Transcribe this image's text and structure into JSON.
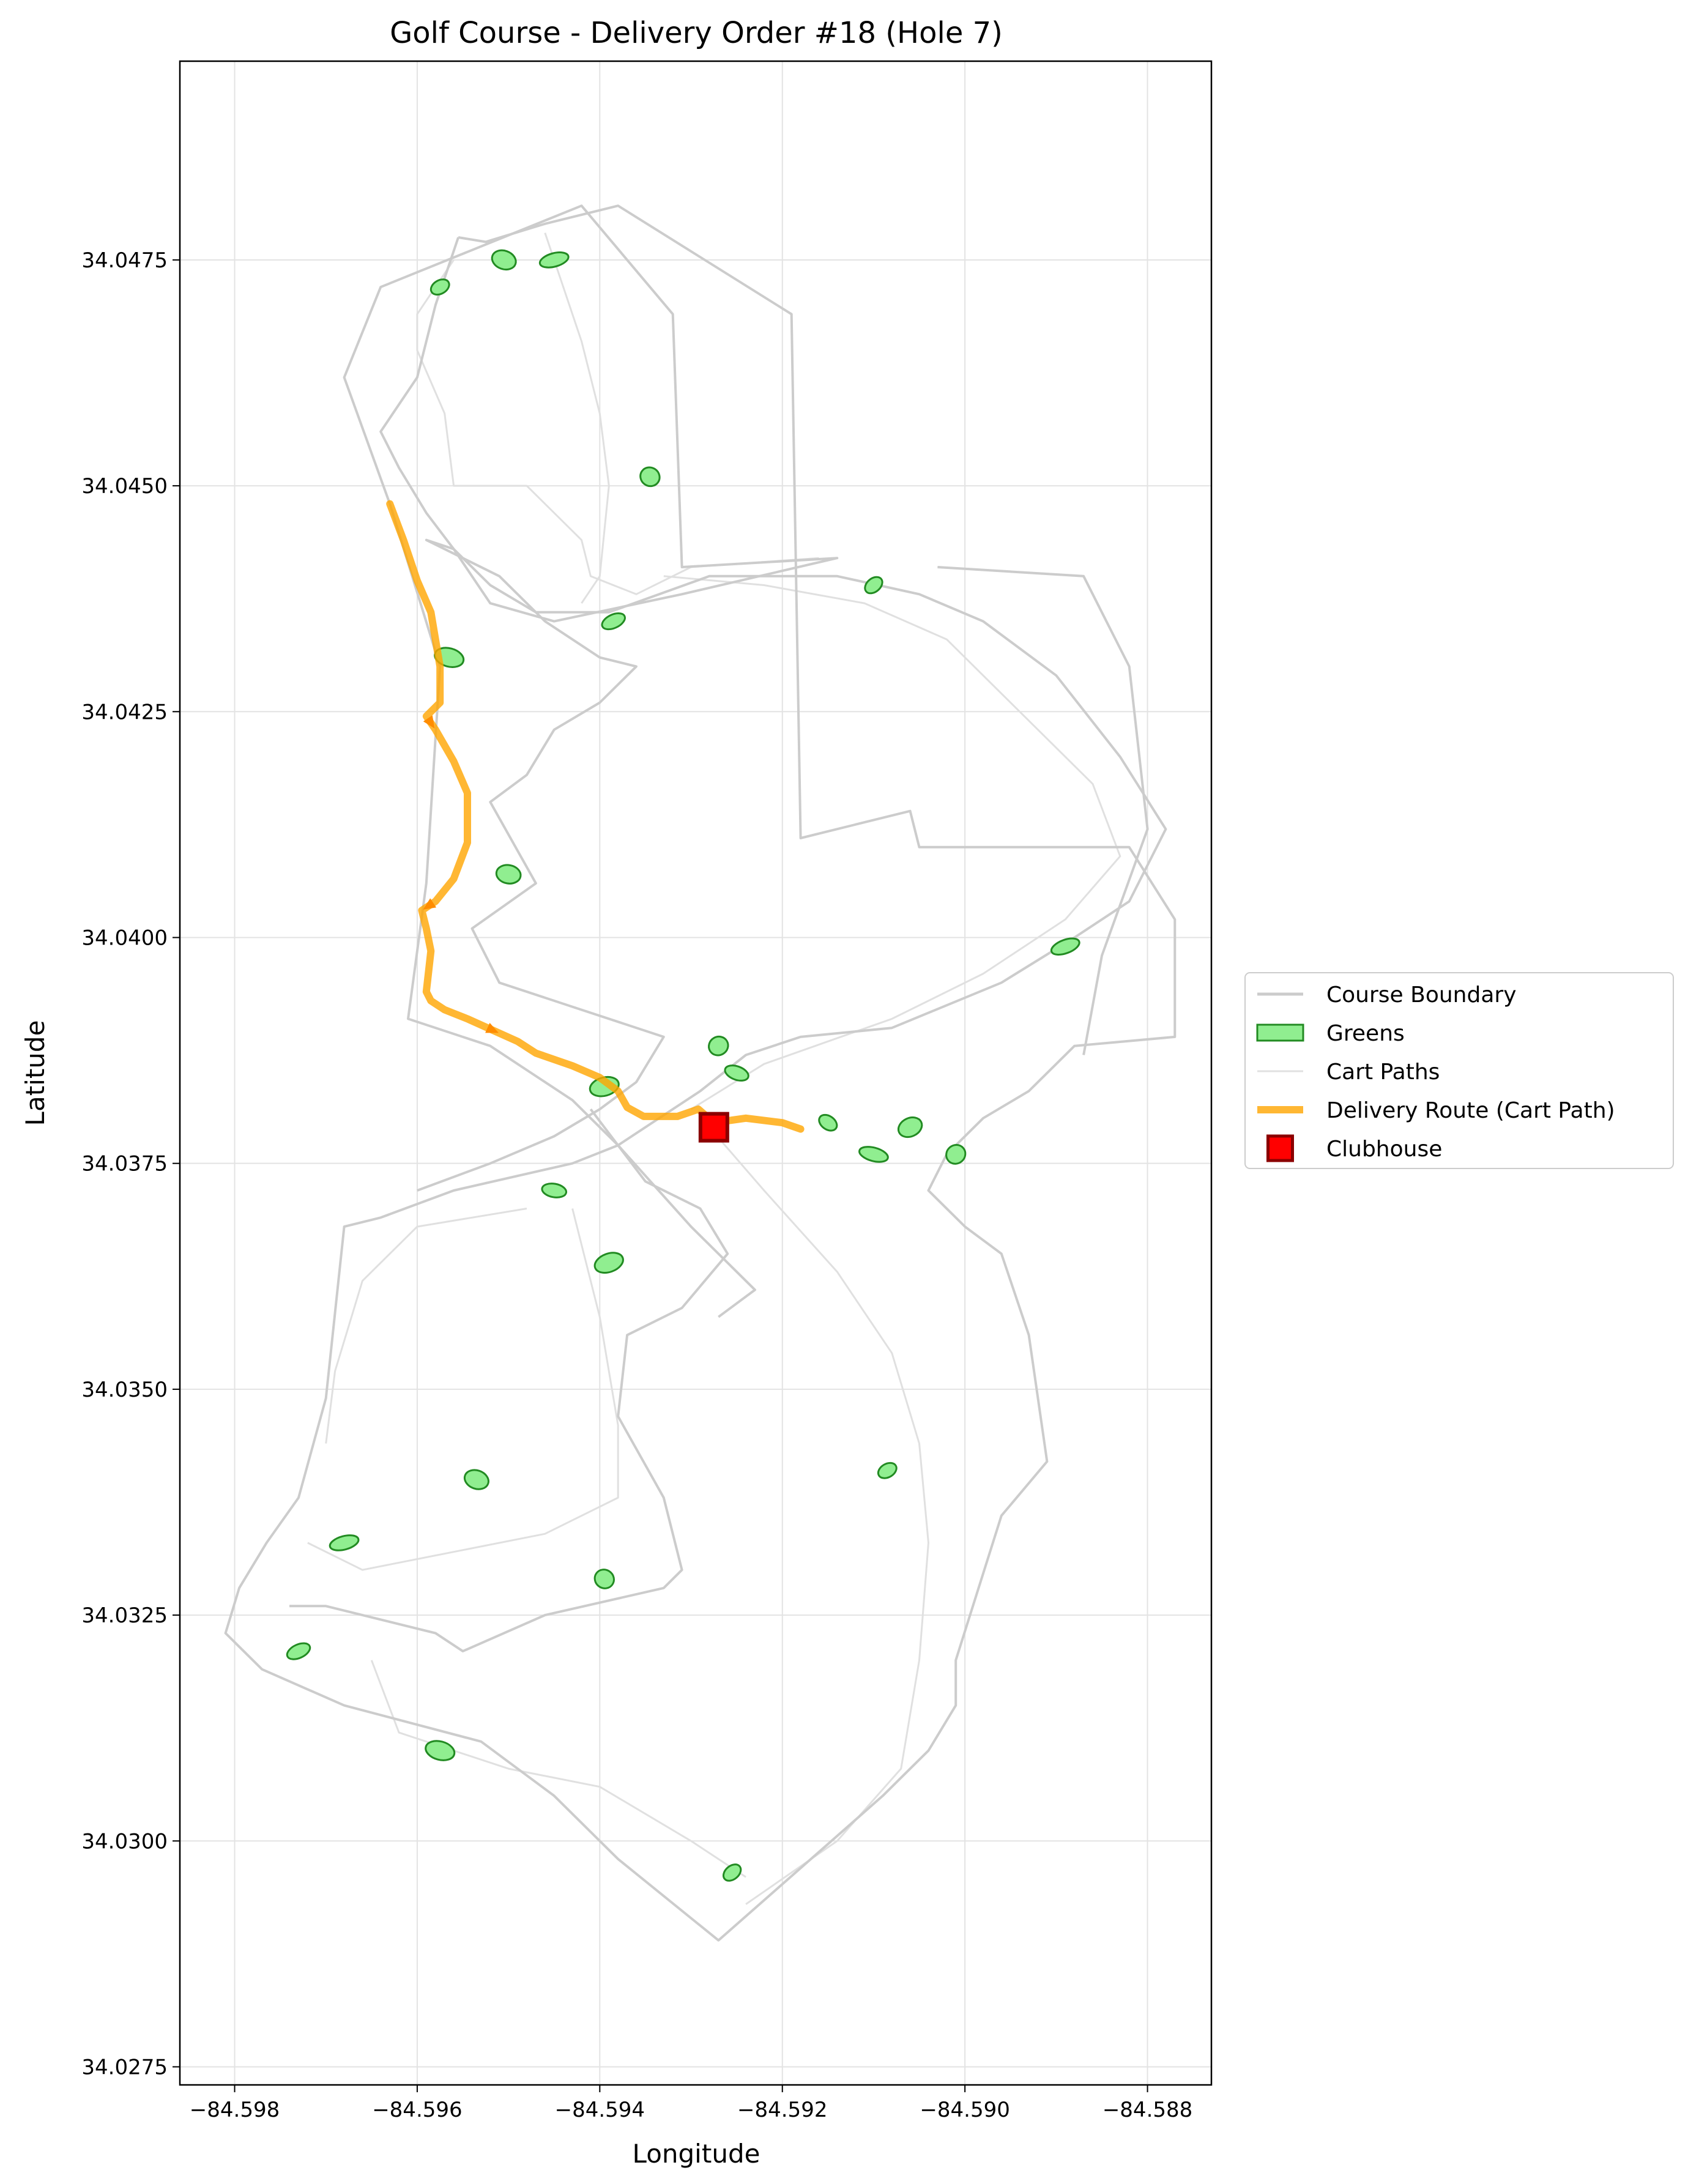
{
  "chart_data": {
    "type": "scatter",
    "title": "Golf Course - Delivery Order #18 (Hole 7)",
    "xlabel": "Longitude",
    "ylabel": "Latitude",
    "xlim": [
      -84.5986,
      -84.5873
    ],
    "ylim": [
      34.0273,
      34.0497
    ],
    "x_ticks": [
      -84.598,
      -84.596,
      -84.594,
      -84.592,
      -84.59,
      -84.588
    ],
    "x_tick_labels": [
      "−84.598",
      "−84.596",
      "−84.594",
      "−84.592",
      "−84.590",
      "−84.588"
    ],
    "y_ticks": [
      34.0275,
      34.03,
      34.0325,
      34.035,
      34.0375,
      34.04,
      34.0425,
      34.045,
      34.0475
    ],
    "y_tick_labels": [
      "34.0275",
      "34.0300",
      "34.0325",
      "34.0350",
      "34.0375",
      "34.0400",
      "34.0425",
      "34.0450",
      "34.0475"
    ],
    "grid": true,
    "legend_position": "outside-right",
    "legend": [
      {
        "label": "Course Boundary",
        "kind": "line",
        "color": "#cccccc"
      },
      {
        "label": "Greens",
        "kind": "patch",
        "color": "#90ee90",
        "edge": "#228b22"
      },
      {
        "label": "Cart Paths",
        "kind": "thinline",
        "color": "#e0e0e0"
      },
      {
        "label": "Delivery Route (Cart Path)",
        "kind": "thickline",
        "color": "#ffa500"
      },
      {
        "label": "Clubhouse",
        "kind": "square",
        "color": "#ff0000",
        "edge": "#8b0000"
      }
    ],
    "colors": {
      "boundary": "#cccccc",
      "green_fill": "#90ee90",
      "green_edge": "#228b22",
      "cart_path": "#e0e0e0",
      "route": "#ffa500",
      "route_arrow": "#ff8c00",
      "clubhouse_fill": "#ff0000",
      "clubhouse_edge": "#8b0000"
    },
    "clubhouse": {
      "x": -84.59275,
      "y": 34.0379
    },
    "delivery_route": [
      [
        -84.5963,
        34.0448
      ],
      [
        -84.59615,
        34.0444
      ],
      [
        -84.596,
        34.04395
      ],
      [
        -84.59585,
        34.0436
      ],
      [
        -84.59575,
        34.043
      ],
      [
        -84.59575,
        34.0426
      ],
      [
        -84.5959,
        34.04245
      ],
      [
        -84.5958,
        34.0423
      ],
      [
        -84.5956,
        34.04195
      ],
      [
        -84.59545,
        34.0416
      ],
      [
        -84.59545,
        34.04105
      ],
      [
        -84.5956,
        34.04065
      ],
      [
        -84.5958,
        34.0404
      ],
      [
        -84.59595,
        34.0403
      ],
      [
        -84.5959,
        34.0401
      ],
      [
        -84.59585,
        34.03985
      ],
      [
        -84.5959,
        34.0394
      ],
      [
        -84.59585,
        34.0393
      ],
      [
        -84.5957,
        34.0392
      ],
      [
        -84.59545,
        34.0391
      ],
      [
        -84.5949,
        34.03885
      ],
      [
        -84.5947,
        34.03872
      ],
      [
        -84.5943,
        34.03858
      ],
      [
        -84.594,
        34.03845
      ],
      [
        -84.5938,
        34.0383
      ],
      [
        -84.5937,
        34.03812
      ],
      [
        -84.59352,
        34.03802
      ],
      [
        -84.59315,
        34.03802
      ],
      [
        -84.59292,
        34.0381
      ],
      [
        -84.59275,
        34.03795
      ],
      [
        -84.5924,
        34.038
      ],
      [
        -84.592,
        34.03795
      ],
      [
        -84.5918,
        34.03788
      ]
    ],
    "course_boundary": [
      [
        [
          -84.59555,
          34.04775
        ],
        [
          -84.59525,
          34.0477
        ],
        [
          -84.5946,
          34.0479
        ],
        [
          -84.5938,
          34.0481
        ],
        [
          -84.5919,
          34.0469
        ],
        [
          -84.5918,
          34.0411
        ],
        [
          -84.5906,
          34.0414
        ],
        [
          -84.5905,
          34.041
        ],
        [
          -84.5882,
          34.041
        ],
        [
          -84.5877,
          34.0402
        ],
        [
          -84.5877,
          34.0389
        ],
        [
          -84.5888,
          34.0388
        ],
        [
          -84.5893,
          34.0383
        ],
        [
          -84.5898,
          34.038
        ],
        [
          -84.5902,
          34.0376
        ],
        [
          -84.5904,
          34.0372
        ],
        [
          -84.59,
          34.0368
        ],
        [
          -84.5896,
          34.0365
        ],
        [
          -84.5893,
          34.0356
        ],
        [
          -84.5891,
          34.0342
        ],
        [
          -84.5896,
          34.0336
        ],
        [
          -84.5901,
          34.032
        ],
        [
          -84.5901,
          34.0315
        ],
        [
          -84.5904,
          34.031
        ],
        [
          -84.5909,
          34.0305
        ],
        [
          -84.5918,
          34.0297
        ],
        [
          -84.5927,
          34.0289
        ],
        [
          -84.5938,
          34.0298
        ],
        [
          -84.5945,
          34.0305
        ],
        [
          -84.5953,
          34.0311
        ],
        [
          -84.5968,
          34.0315
        ],
        [
          -84.5977,
          34.0319
        ],
        [
          -84.5981,
          34.0323
        ],
        [
          -84.59795,
          34.0328
        ],
        [
          -84.59765,
          34.0333
        ],
        [
          -84.5973,
          34.0338
        ],
        [
          -84.597,
          34.0349
        ],
        [
          -84.5968,
          34.0368
        ],
        [
          -84.5964,
          34.0369
        ],
        [
          -84.5956,
          34.0372
        ],
        [
          -84.5943,
          34.0375
        ],
        [
          -84.5938,
          34.0377
        ],
        [
          -84.5929,
          34.0383
        ],
        [
          -84.5924,
          34.0387
        ],
        [
          -84.5918,
          34.0389
        ],
        [
          -84.5908,
          34.039
        ],
        [
          -84.5896,
          34.0395
        ],
        [
          -84.5888,
          34.04
        ],
        [
          -84.5882,
          34.0404
        ],
        [
          -84.5878,
          34.0412
        ],
        [
          -84.5883,
          34.042
        ],
        [
          -84.589,
          34.0429
        ],
        [
          -84.5898,
          34.0435
        ],
        [
          -84.5905,
          34.0438
        ],
        [
          -84.5914,
          34.044
        ],
        [
          -84.5928,
          34.044
        ],
        [
          -84.5939,
          34.0436
        ],
        [
          -84.5947,
          34.0436
        ],
        [
          -84.5952,
          34.0439
        ],
        [
          -84.5956,
          34.0443
        ],
        [
          -84.5959,
          34.0447
        ],
        [
          -84.5962,
          34.0452
        ],
        [
          -84.5964,
          34.0456
        ],
        [
          -84.596,
          34.0462
        ],
        [
          -84.5958,
          34.047
        ],
        [
          -84.59555,
          34.04775
        ]
      ],
      [
        [
          -84.5963,
          34.0448
        ],
        [
          -84.5968,
          34.0462
        ],
        [
          -84.5964,
          34.0472
        ],
        [
          -84.5942,
          34.0481
        ],
        [
          -84.5932,
          34.0469
        ],
        [
          -84.5931,
          34.0441
        ],
        [
          -84.5914,
          34.0442
        ],
        [
          -84.5931,
          34.0438
        ],
        [
          -84.5945,
          34.0435
        ],
        [
          -84.5952,
          34.0437
        ],
        [
          -84.5956,
          34.0443
        ],
        [
          -84.5959,
          34.0444
        ],
        [
          -84.5951,
          34.044
        ],
        [
          -84.5946,
          34.0435
        ],
        [
          -84.594,
          34.0431
        ],
        [
          -84.5936,
          34.043
        ],
        [
          -84.594,
          34.0426
        ],
        [
          -84.5945,
          34.0423
        ],
        [
          -84.5948,
          34.0418
        ],
        [
          -84.5952,
          34.0415
        ],
        [
          -84.5947,
          34.0406
        ],
        [
          -84.5954,
          34.0401
        ],
        [
          -84.5951,
          34.0395
        ],
        [
          -84.5942,
          34.0392
        ],
        [
          -84.5933,
          34.0389
        ],
        [
          -84.5936,
          34.0384
        ],
        [
          -84.594,
          34.0381
        ],
        [
          -84.5945,
          34.0378
        ],
        [
          -84.5952,
          34.0375
        ],
        [
          -84.596,
          34.0372
        ]
      ],
      [
        [
          -84.5963,
          34.0448
        ],
        [
          -84.59575,
          34.043
        ],
        [
          -84.5959,
          34.0406
        ],
        [
          -84.5961,
          34.0391
        ],
        [
          -84.5952,
          34.0388
        ],
        [
          -84.5943,
          34.0382
        ],
        [
          -84.5938,
          34.0377
        ],
        [
          -84.593,
          34.0368
        ],
        [
          -84.5923,
          34.0361
        ],
        [
          -84.5927,
          34.0358
        ]
      ],
      [
        [
          -84.5903,
          34.0441
        ],
        [
          -84.5887,
          34.044
        ],
        [
          -84.5882,
          34.043
        ],
        [
          -84.588,
          34.0412
        ],
        [
          -84.5885,
          34.0398
        ],
        [
          -84.5887,
          34.0387
        ]
      ],
      [
        [
          -84.5941,
          34.0381
        ],
        [
          -84.5935,
          34.0373
        ],
        [
          -84.5929,
          34.037
        ],
        [
          -84.5926,
          34.0365
        ],
        [
          -84.5931,
          34.0359
        ],
        [
          -84.5937,
          34.0356
        ],
        [
          -84.5938,
          34.0347
        ],
        [
          -84.5933,
          34.0338
        ],
        [
          -84.5931,
          34.033
        ],
        [
          -84.5933,
          34.0328
        ],
        [
          -84.5946,
          34.0325
        ],
        [
          -84.5955,
          34.0321
        ],
        [
          -84.5958,
          34.0323
        ],
        [
          -84.597,
          34.0326
        ],
        [
          -84.5974,
          34.0326
        ]
      ]
    ],
    "cart_paths": [
      [
        [
          -84.5956,
          34.0475
        ],
        [
          -84.596,
          34.0469
        ],
        [
          -84.596,
          34.0465
        ],
        [
          -84.5957,
          34.0458
        ],
        [
          -84.5956,
          34.045
        ],
        [
          -84.5948,
          34.045
        ],
        [
          -84.5942,
          34.0444
        ],
        [
          -84.5941,
          34.044
        ],
        [
          -84.5936,
          34.0438
        ],
        [
          -84.593,
          34.0441
        ],
        [
          -84.5916,
          34.0442
        ]
      ],
      [
        [
          -84.5946,
          34.0478
        ],
        [
          -84.5944,
          34.0472
        ],
        [
          -84.5942,
          34.0466
        ],
        [
          -84.594,
          34.0458
        ],
        [
          -84.5939,
          34.045
        ],
        [
          -84.594,
          34.044
        ],
        [
          -84.5942,
          34.0437
        ]
      ],
      [
        [
          -84.593,
          34.0381
        ],
        [
          -84.5922,
          34.0386
        ],
        [
          -84.5908,
          34.0391
        ],
        [
          -84.5898,
          34.0396
        ],
        [
          -84.5889,
          34.0402
        ],
        [
          -84.5883,
          34.0409
        ],
        [
          -84.5886,
          34.0417
        ],
        [
          -84.5894,
          34.0425
        ],
        [
          -84.5902,
          34.0433
        ],
        [
          -84.5911,
          34.0437
        ],
        [
          -84.5922,
          34.0439
        ],
        [
          -84.5933,
          34.044
        ]
      ],
      [
        [
          -84.5928,
          34.0379
        ],
        [
          -84.5922,
          34.0372
        ],
        [
          -84.5914,
          34.0363
        ],
        [
          -84.5908,
          34.0354
        ],
        [
          -84.5905,
          34.0344
        ],
        [
          -84.5904,
          34.0333
        ],
        [
          -84.5905,
          34.032
        ],
        [
          -84.5907,
          34.0308
        ],
        [
          -84.5914,
          34.03
        ],
        [
          -84.5924,
          34.0293
        ]
      ],
      [
        [
          -84.5943,
          34.037
        ],
        [
          -84.594,
          34.0358
        ],
        [
          -84.5938,
          34.0346
        ],
        [
          -84.5938,
          34.0338
        ],
        [
          -84.5946,
          34.0334
        ],
        [
          -84.5956,
          34.0332
        ],
        [
          -84.5966,
          34.033
        ],
        [
          -84.5972,
          34.0333
        ]
      ],
      [
        [
          -84.5948,
          34.037
        ],
        [
          -84.596,
          34.0368
        ],
        [
          -84.5966,
          34.0362
        ],
        [
          -84.5969,
          34.0352
        ],
        [
          -84.597,
          34.0344
        ]
      ],
      [
        [
          -84.5965,
          34.032
        ],
        [
          -84.5962,
          34.0312
        ],
        [
          -84.595,
          34.0308
        ],
        [
          -84.594,
          34.0306
        ],
        [
          -84.593,
          34.03
        ],
        [
          -84.5924,
          34.0296
        ]
      ]
    ],
    "greens": [
      [
        -84.59575,
        34.0472
      ],
      [
        -84.59505,
        34.0475
      ],
      [
        -84.5945,
        34.0475
      ],
      [
        -84.59345,
        34.0451
      ],
      [
        -84.59385,
        34.0435
      ],
      [
        -84.59565,
        34.0431
      ],
      [
        -84.591,
        34.0439
      ],
      [
        -84.595,
        34.0407
      ],
      [
        -84.5889,
        34.0399
      ],
      [
        -84.5927,
        34.0388
      ],
      [
        -84.5925,
        34.0385
      ],
      [
        -84.59395,
        34.03835
      ],
      [
        -84.5915,
        34.03795
      ],
      [
        -84.5906,
        34.0379
      ],
      [
        -84.591,
        34.0376
      ],
      [
        -84.5901,
        34.0376
      ],
      [
        -84.5945,
        34.0372
      ],
      [
        -84.5939,
        34.0364
      ],
      [
        -84.59085,
        34.0341
      ],
      [
        -84.59535,
        34.034
      ],
      [
        -84.5968,
        34.0333
      ],
      [
        -84.59395,
        34.0329
      ],
      [
        -84.5973,
        34.0321
      ],
      [
        -84.59575,
        34.031
      ],
      [
        -84.59255,
        34.02965
      ]
    ]
  }
}
